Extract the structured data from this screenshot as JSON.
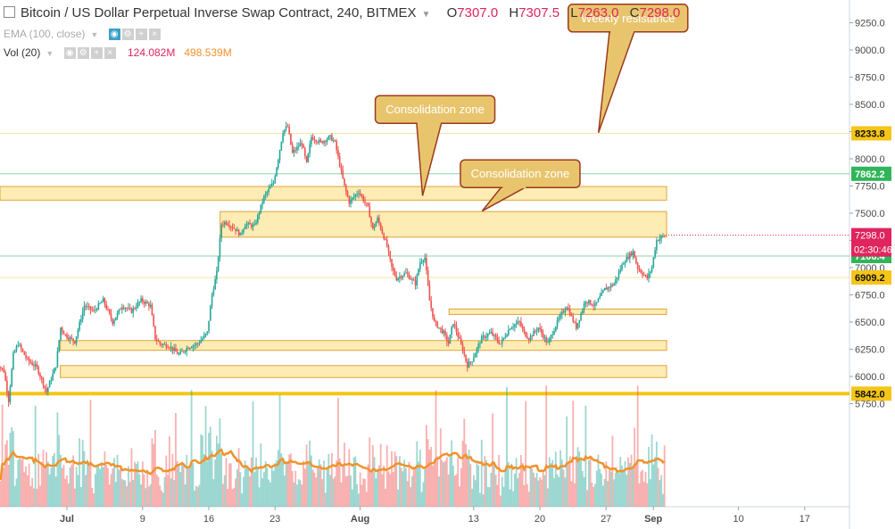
{
  "header": {
    "title": "Bitcoin / US Dollar Perpetual Inverse Swap Contract, 240, BITMEX",
    "ohlc": [
      {
        "key": "O",
        "value": "7307.0"
      },
      {
        "key": "H",
        "value": "7307.5"
      },
      {
        "key": "L",
        "value": "7263.0"
      },
      {
        "key": "C",
        "value": "7298.0"
      }
    ]
  },
  "indicators": {
    "ema": {
      "label": "EMA (100, close)"
    },
    "volume": {
      "label": "Vol (20)",
      "value1": "124.082M",
      "value2": "498.539M"
    }
  },
  "colors": {
    "up": "#26a69a",
    "down": "#ef5350",
    "zone_fill": "#fde9a6",
    "zone_border": "#e0a43a",
    "support": "#f5c518",
    "ma": "#f0932b",
    "callout_fill": "#e8c56d",
    "callout_border": "#9c3a1c"
  },
  "chart_data": {
    "type": "candlestick",
    "symbol": "XBTUSD",
    "interval": "240",
    "y_axis": {
      "min": 5600,
      "max": 9450,
      "ticks": [
        5750,
        6000,
        6250,
        6500,
        6750,
        7000,
        7250,
        7500,
        7750,
        8000,
        8250,
        8500,
        8750,
        9000,
        9250
      ],
      "tick_labels": [
        "5750.0",
        "6000.0",
        "6250.0",
        "6500.0",
        "6750.0",
        "7000.0",
        "7250.0",
        "7500.0",
        "7750.0",
        "8000.0",
        "8250.0",
        "8500.0",
        "8750.0",
        "9000.0",
        "9250.0"
      ]
    },
    "x_axis": {
      "ticks": [
        {
          "day": 1,
          "label": "Jul",
          "bold": true
        },
        {
          "day": 9,
          "label": "9"
        },
        {
          "day": 16,
          "label": "16"
        },
        {
          "day": 23,
          "label": "23"
        },
        {
          "day": 32,
          "label": "Aug",
          "bold": true
        },
        {
          "day": 44,
          "label": "13"
        },
        {
          "day": 51,
          "label": "20"
        },
        {
          "day": 58,
          "label": "27"
        },
        {
          "day": 63,
          "label": "Sep",
          "bold": true
        },
        {
          "day": 72,
          "label": "10"
        },
        {
          "day": 79,
          "label": "17"
        }
      ],
      "start_day": -6.7,
      "end_day": 82.3
    },
    "price_path": [
      [
        -6.5,
        6150
      ],
      [
        -5.5,
        6050
      ],
      [
        -5,
        5780
      ],
      [
        -4.5,
        6200
      ],
      [
        -4,
        6300
      ],
      [
        -3,
        6150
      ],
      [
        -2,
        6080
      ],
      [
        -1,
        5860
      ],
      [
        0,
        6100
      ],
      [
        0.5,
        6450
      ],
      [
        1,
        6380
      ],
      [
        2,
        6320
      ],
      [
        3,
        6650
      ],
      [
        4,
        6600
      ],
      [
        5,
        6700
      ],
      [
        6,
        6500
      ],
      [
        7,
        6650
      ],
      [
        8,
        6600
      ],
      [
        9,
        6700
      ],
      [
        10,
        6650
      ],
      [
        10.5,
        6350
      ],
      [
        11,
        6300
      ],
      [
        12,
        6280
      ],
      [
        13,
        6200
      ],
      [
        14,
        6270
      ],
      [
        15,
        6300
      ],
      [
        16,
        6400
      ],
      [
        16.5,
        6750
      ],
      [
        17,
        6950
      ],
      [
        17.5,
        7400
      ],
      [
        18,
        7420
      ],
      [
        19,
        7350
      ],
      [
        19.5,
        7300
      ],
      [
        20,
        7400
      ],
      [
        21,
        7380
      ],
      [
        22,
        7650
      ],
      [
        23,
        7780
      ],
      [
        23.5,
        8000
      ],
      [
        24,
        8250
      ],
      [
        24.5,
        8300
      ],
      [
        25,
        8050
      ],
      [
        26,
        8150
      ],
      [
        26.5,
        7950
      ],
      [
        27,
        8200
      ],
      [
        28,
        8150
      ],
      [
        29,
        8200
      ],
      [
        29.5,
        8150
      ],
      [
        30,
        7950
      ],
      [
        30.5,
        7750
      ],
      [
        31,
        7600
      ],
      [
        32,
        7700
      ],
      [
        33,
        7550
      ],
      [
        33.5,
        7350
      ],
      [
        34,
        7450
      ],
      [
        35,
        7200
      ],
      [
        35.5,
        7000
      ],
      [
        36,
        6900
      ],
      [
        37,
        6950
      ],
      [
        38,
        6850
      ],
      [
        38.5,
        7050
      ],
      [
        39,
        7100
      ],
      [
        39.5,
        6700
      ],
      [
        40,
        6500
      ],
      [
        41,
        6400
      ],
      [
        41.5,
        6300
      ],
      [
        42,
        6500
      ],
      [
        43,
        6250
      ],
      [
        43.5,
        6100
      ],
      [
        44,
        6150
      ],
      [
        45,
        6350
      ],
      [
        46,
        6400
      ],
      [
        47,
        6300
      ],
      [
        48,
        6450
      ],
      [
        49,
        6500
      ],
      [
        49.5,
        6400
      ],
      [
        50,
        6350
      ],
      [
        51,
        6450
      ],
      [
        52,
        6300
      ],
      [
        53,
        6500
      ],
      [
        54,
        6650
      ],
      [
        55,
        6450
      ],
      [
        56,
        6700
      ],
      [
        57,
        6650
      ],
      [
        58,
        6800
      ],
      [
        59,
        6850
      ],
      [
        60,
        7050
      ],
      [
        61,
        7150
      ],
      [
        61.5,
        7000
      ],
      [
        62,
        6950
      ],
      [
        62.5,
        6900
      ],
      [
        63,
        7000
      ],
      [
        63.5,
        7250
      ],
      [
        64.3,
        7298
      ]
    ],
    "last_price": 7298.0,
    "countdown": "02:30:46",
    "price_labels": [
      {
        "value": 8233.8,
        "text": "8233.8",
        "style": "yellow"
      },
      {
        "value": 7862.2,
        "text": "7862.2",
        "style": "green"
      },
      {
        "value": 7106.4,
        "text": "7106.4",
        "style": "green"
      },
      {
        "value": 6909.2,
        "text": "6909.2",
        "style": "yellow"
      },
      {
        "value": 5842.0,
        "text": "5842.0",
        "style": "yellow"
      }
    ],
    "zones": [
      {
        "day_start": -6.7,
        "day_end": 64.4,
        "high": 7745,
        "low": 7620
      },
      {
        "day_start": 17.2,
        "day_end": 64.4,
        "high": 7515,
        "low": 7280
      },
      {
        "day_start": 41.4,
        "day_end": 64.4,
        "high": 6620,
        "low": 6570
      },
      {
        "day_start": 0.3,
        "day_end": 64.4,
        "high": 6330,
        "low": 6240
      },
      {
        "day_start": 0.3,
        "day_end": 64.4,
        "high": 6100,
        "low": 5990
      }
    ],
    "horizontal_lines": [
      {
        "value": 8233.8,
        "style": "thin-yellow"
      },
      {
        "value": 7862.2,
        "style": "thin-green"
      },
      {
        "value": 7106.4,
        "style": "thin-green"
      },
      {
        "value": 6909.2,
        "style": "thin-yellow"
      },
      {
        "value": 5842.0,
        "style": "thick-yellow"
      }
    ],
    "annotations": [
      {
        "text": "Consolidation zone",
        "box_day": 33.6,
        "box_price": 8580,
        "pointer_day": 38.6,
        "pointer_price": 7660
      },
      {
        "text": "Consolidation zone",
        "box_day": 42.6,
        "box_price": 7990,
        "pointer_day": 44.9,
        "pointer_price": 7520
      },
      {
        "text": "Weekly resistance",
        "box_day": 54.0,
        "box_price": 9420,
        "pointer_day": 57.2,
        "pointer_price": 8240
      }
    ],
    "volume_pane": {
      "baseline": 568,
      "max_height": 150
    }
  }
}
